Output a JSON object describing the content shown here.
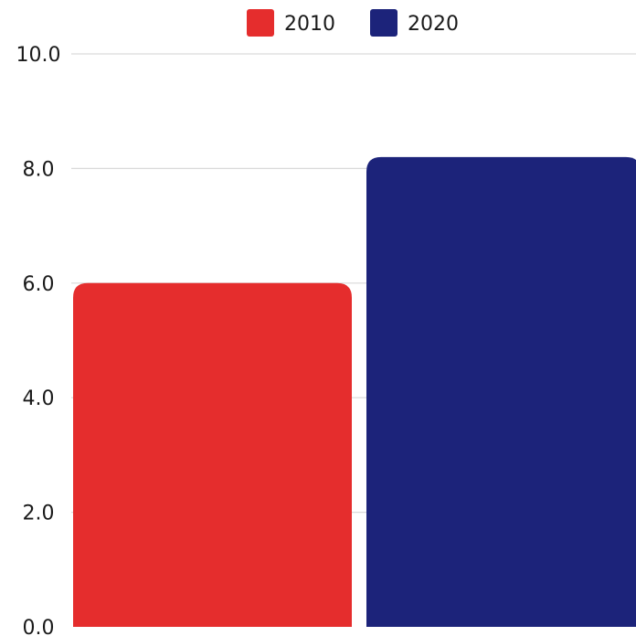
{
  "chart_data": {
    "type": "bar",
    "categories": [
      ""
    ],
    "series": [
      {
        "name": "2010",
        "values": [
          6.0
        ],
        "color": "#e52d2d"
      },
      {
        "name": "2020",
        "values": [
          8.2
        ],
        "color": "#1c237a"
      }
    ],
    "ylim": [
      0,
      10
    ],
    "yticks": [
      0,
      2,
      4,
      6,
      8,
      10
    ],
    "ytick_labels": [
      "0.0",
      "2.0",
      "4.0",
      "6.0",
      "8.0",
      "10.0"
    ],
    "grid": true,
    "legend_position": "top-center",
    "title": "",
    "xlabel": "",
    "ylabel": ""
  }
}
